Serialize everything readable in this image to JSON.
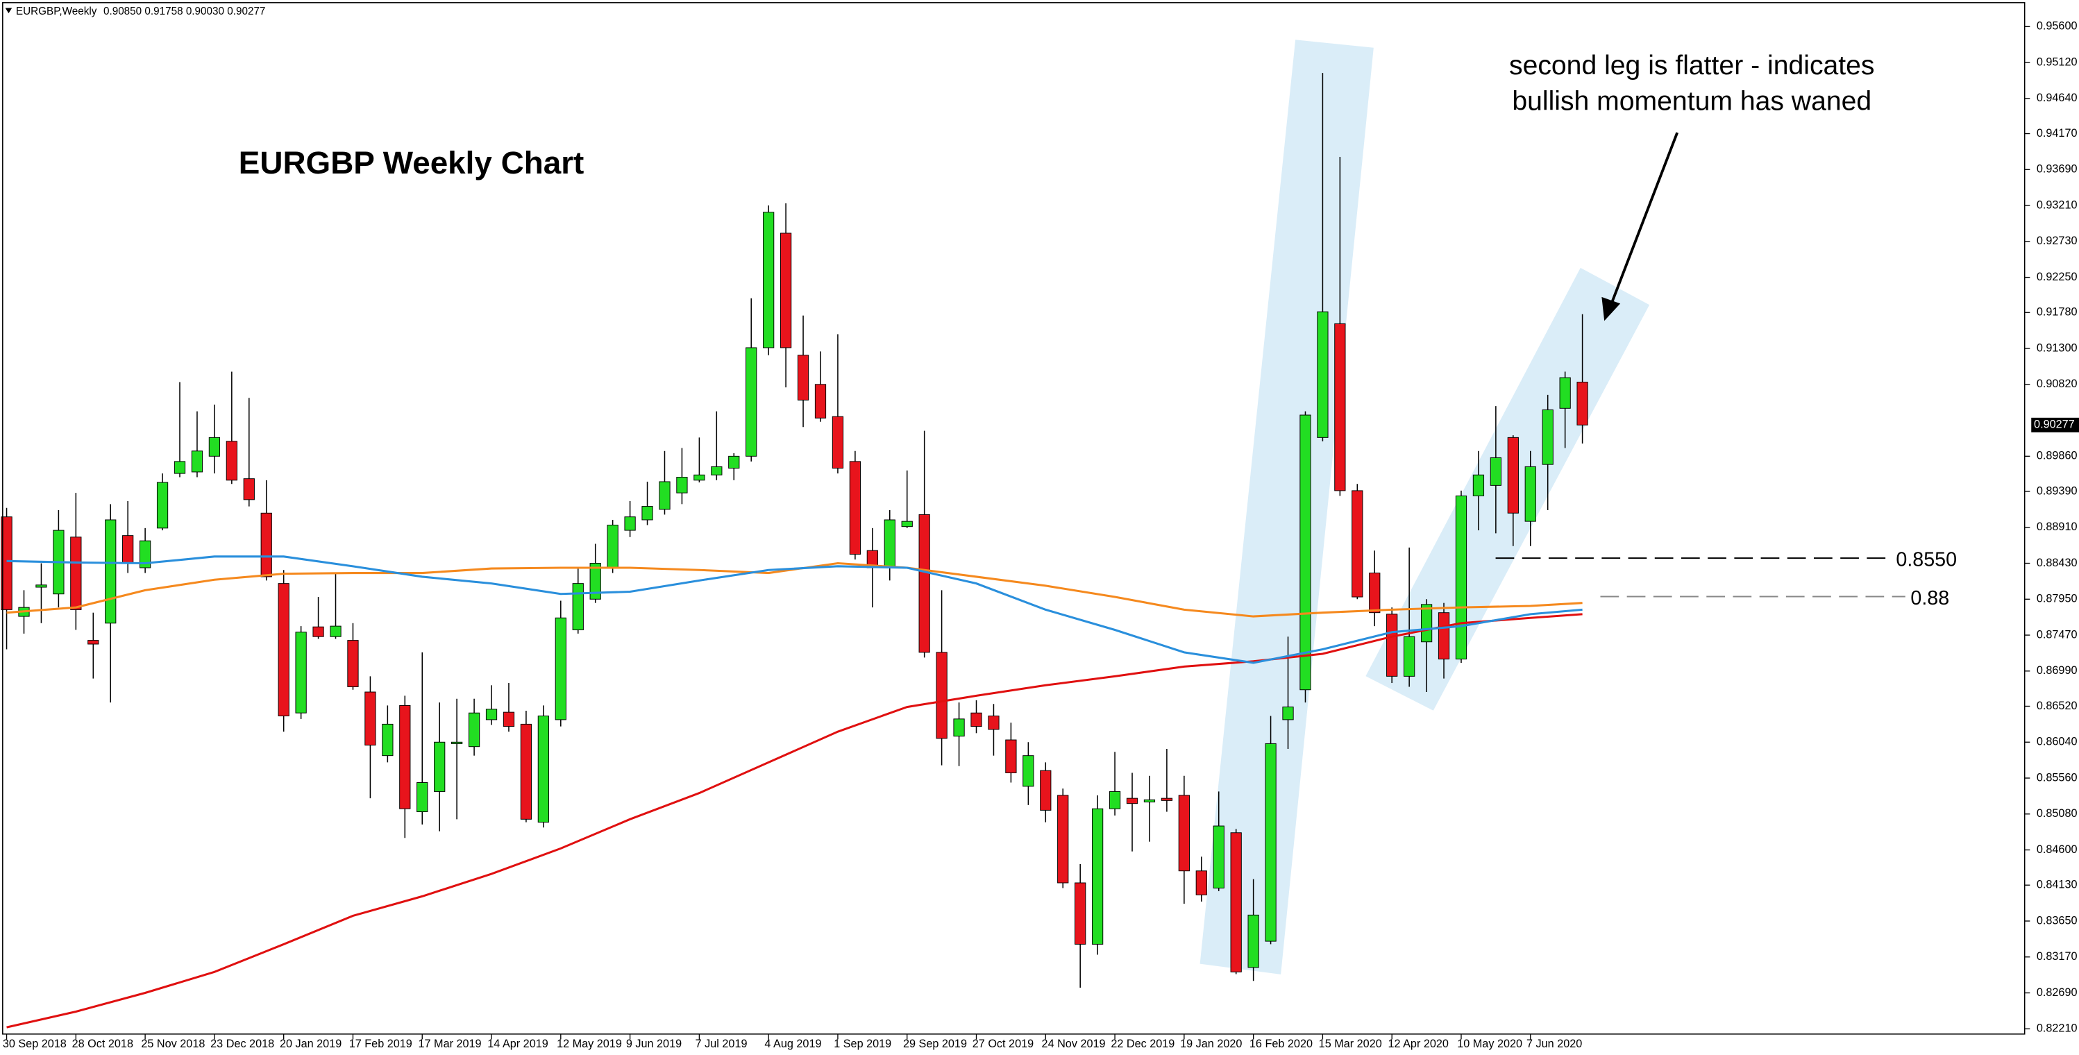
{
  "chart_data": {
    "type": "candlestick",
    "header": {
      "symbol": "EURGBP,Weekly",
      "ohlc": "0.90850 0.91758 0.90030 0.90277"
    },
    "title": "EURGBP Weekly Chart",
    "annotations": [
      "second leg is flatter - indicates",
      "bullish momentum has waned"
    ],
    "level_labels": [
      "0.8550",
      "0.88"
    ],
    "bull_color": "#22de22",
    "bear_color": "#e8141c",
    "categories": [
      "30 Sep 2018",
      null,
      null,
      null,
      "28 Oct 2018",
      null,
      null,
      null,
      "25 Nov 2018",
      null,
      null,
      null,
      "23 Dec 2018",
      null,
      null,
      null,
      "20 Jan 2019",
      null,
      null,
      null,
      "17 Feb 2019",
      null,
      null,
      null,
      "17 Mar 2019",
      null,
      null,
      null,
      "14 Apr 2019",
      null,
      null,
      null,
      "12 May 2019",
      null,
      null,
      null,
      "9 Jun 2019",
      null,
      null,
      null,
      "7 Jul 2019",
      null,
      null,
      null,
      "4 Aug 2019",
      null,
      null,
      null,
      "1 Sep 2019",
      null,
      null,
      null,
      "29 Sep 2019",
      null,
      null,
      null,
      "27 Oct 2019",
      null,
      null,
      null,
      "24 Nov 2019",
      null,
      null,
      null,
      "22 Dec 2019",
      null,
      null,
      null,
      "19 Jan 2020",
      null,
      null,
      null,
      "16 Feb 2020",
      null,
      null,
      null,
      "15 Mar 2020",
      null,
      null,
      null,
      "12 Apr 2020",
      null,
      null,
      null,
      "10 May 2020",
      null,
      null,
      null,
      "7 Jun 2020",
      null,
      null,
      null
    ],
    "open": [
      0.8905,
      0.8772,
      0.8811,
      0.8802,
      0.8878,
      0.874,
      0.8763,
      0.888,
      0.8837,
      0.889,
      0.8963,
      0.8965,
      0.8986,
      0.9006,
      0.8956,
      0.891,
      0.8816,
      0.8643,
      0.8758,
      0.8745,
      0.874,
      0.8671,
      0.8586,
      0.8653,
      0.8511,
      0.8538,
      0.8602,
      0.8598,
      0.8634,
      0.8644,
      0.8628,
      0.8497,
      0.8634,
      0.8754,
      0.8795,
      0.8837,
      0.8887,
      0.8901,
      0.8915,
      0.8937,
      0.8954,
      0.8961,
      0.897,
      0.8986,
      0.9131,
      0.9284,
      0.9121,
      0.9082,
      0.9039,
      0.8979,
      0.886,
      0.8837,
      0.8892,
      0.8908,
      0.8724,
      0.8612,
      0.8643,
      0.8639,
      0.8607,
      0.8545,
      0.8566,
      0.8533,
      0.8416,
      0.8334,
      0.8515,
      0.8529,
      0.8524,
      0.8529,
      0.8533,
      0.8432,
      0.8409,
      0.8483,
      0.8303,
      0.8338,
      0.8634,
      0.8674,
      0.9011,
      0.9163,
      0.894,
      0.883,
      0.8775,
      0.8692,
      0.8738,
      0.8777,
      0.8715,
      0.8933,
      0.8947,
      0.9011,
      0.8899,
      0.8975,
      0.905,
      0.9085
    ],
    "high": [
      0.8917,
      0.8807,
      0.8843,
      0.8914,
      0.8937,
      0.8777,
      0.8922,
      0.8926,
      0.889,
      0.8963,
      0.9085,
      0.9046,
      0.9055,
      0.9099,
      0.9064,
      0.8954,
      0.8834,
      0.8759,
      0.8798,
      0.883,
      0.8763,
      0.8692,
      0.8653,
      0.8666,
      0.8724,
      0.8657,
      0.8662,
      0.8662,
      0.868,
      0.8683,
      0.8646,
      0.8653,
      0.8793,
      0.8837,
      0.8869,
      0.8901,
      0.8926,
      0.8952,
      0.8993,
      0.8997,
      0.9011,
      0.9046,
      0.899,
      0.9197,
      0.9321,
      0.9324,
      0.9174,
      0.9126,
      0.9149,
      0.8993,
      0.889,
      0.8914,
      0.8967,
      0.902,
      0.8807,
      0.8657,
      0.866,
      0.8655,
      0.863,
      0.8604,
      0.8577,
      0.8542,
      0.8441,
      0.8533,
      0.8591,
      0.8563,
      0.8559,
      0.8595,
      0.8559,
      0.8451,
      0.8538,
      0.8488,
      0.8421,
      0.8639,
      0.8745,
      0.9046,
      0.9498,
      0.9386,
      0.8949,
      0.886,
      0.8784,
      0.8864,
      0.8795,
      0.879,
      0.894,
      0.8993,
      0.9053,
      0.9014,
      0.8993,
      0.9068,
      0.9099,
      0.91758
    ],
    "low": [
      0.8728,
      0.8749,
      0.8763,
      0.8784,
      0.8754,
      0.8689,
      0.8657,
      0.883,
      0.883,
      0.8887,
      0.8958,
      0.8958,
      0.8963,
      0.8949,
      0.8919,
      0.882,
      0.8618,
      0.8635,
      0.8742,
      0.8742,
      0.8674,
      0.8529,
      0.8577,
      0.8476,
      0.8494,
      0.8485,
      0.8501,
      0.8586,
      0.8627,
      0.8618,
      0.8497,
      0.849,
      0.8625,
      0.8749,
      0.879,
      0.883,
      0.8878,
      0.8894,
      0.8908,
      0.8922,
      0.8951,
      0.8954,
      0.8954,
      0.8979,
      0.9121,
      0.9078,
      0.9025,
      0.9032,
      0.8963,
      0.8848,
      0.8784,
      0.882,
      0.889,
      0.8717,
      0.8573,
      0.8572,
      0.8616,
      0.8586,
      0.855,
      0.852,
      0.8497,
      0.8409,
      0.8276,
      0.832,
      0.8506,
      0.8458,
      0.8471,
      0.8511,
      0.8388,
      0.8391,
      0.8405,
      0.8294,
      0.8285,
      0.8334,
      0.8595,
      0.8657,
      0.9006,
      0.8933,
      0.8795,
      0.8759,
      0.8683,
      0.8678,
      0.8671,
      0.8689,
      0.871,
      0.8887,
      0.8883,
      0.8866,
      0.8866,
      0.8914,
      0.8997,
      0.9003
    ],
    "close": [
      0.8781,
      0.8784,
      0.8814,
      0.8887,
      0.8781,
      0.8735,
      0.8901,
      0.8843,
      0.8873,
      0.8951,
      0.8979,
      0.8993,
      0.9011,
      0.8954,
      0.8928,
      0.8825,
      0.8639,
      0.8751,
      0.8745,
      0.8759,
      0.8678,
      0.86,
      0.8628,
      0.8515,
      0.855,
      0.8604,
      0.8604,
      0.8643,
      0.8648,
      0.8625,
      0.8501,
      0.8639,
      0.877,
      0.8816,
      0.8843,
      0.8894,
      0.8905,
      0.8919,
      0.8952,
      0.8958,
      0.8961,
      0.8972,
      0.8986,
      0.9131,
      0.9312,
      0.9131,
      0.9061,
      0.9037,
      0.897,
      0.8855,
      0.8837,
      0.8901,
      0.8899,
      0.8724,
      0.8609,
      0.8635,
      0.8625,
      0.8621,
      0.8563,
      0.8586,
      0.8513,
      0.8416,
      0.8334,
      0.8515,
      0.8538,
      0.8522,
      0.8527,
      0.8526,
      0.8432,
      0.84,
      0.8492,
      0.8297,
      0.8373,
      0.8602,
      0.8651,
      0.9041,
      0.9179,
      0.894,
      0.8798,
      0.8777,
      0.8692,
      0.8745,
      0.8788,
      0.8715,
      0.8933,
      0.8961,
      0.8984,
      0.891,
      0.8972,
      0.9048,
      0.9091,
      0.90277
    ],
    "moving_averages": {
      "x": [
        0,
        4,
        8,
        12,
        16,
        20,
        24,
        28,
        32,
        36,
        40,
        44,
        48,
        52,
        56,
        60,
        64,
        68,
        72,
        76,
        80,
        84,
        88,
        91
      ],
      "series": [
        {
          "color": "#e01010",
          "values": [
            0.8223,
            0.8244,
            0.8269,
            0.8297,
            0.8334,
            0.8372,
            0.8398,
            0.8428,
            0.8462,
            0.8501,
            0.8536,
            0.8577,
            0.8618,
            0.8651,
            0.8666,
            0.868,
            0.8692,
            0.8705,
            0.8712,
            0.8722,
            0.8745,
            0.8763,
            0.877,
            0.8775
          ]
        },
        {
          "color": "#f5891e",
          "values": [
            0.8777,
            0.8784,
            0.8807,
            0.8821,
            0.8829,
            0.883,
            0.883,
            0.8836,
            0.8837,
            0.8837,
            0.8834,
            0.883,
            0.8843,
            0.8837,
            0.8825,
            0.8813,
            0.8798,
            0.8781,
            0.8772,
            0.8777,
            0.8781,
            0.8784,
            0.8786,
            0.879
          ]
        },
        {
          "color": "#2a8fdc",
          "values": [
            0.8846,
            0.8844,
            0.8843,
            0.8852,
            0.8852,
            0.8839,
            0.8825,
            0.8816,
            0.8802,
            0.8805,
            0.882,
            0.8834,
            0.8839,
            0.8837,
            0.8816,
            0.8781,
            0.8754,
            0.8724,
            0.871,
            0.8728,
            0.8751,
            0.8759,
            0.8775,
            0.8781
          ]
        }
      ]
    },
    "current_price": 0.90277,
    "ylim": [
      0.8214,
      0.9592
    ],
    "yticks": [
      {
        "value": 0.956,
        "label": "0.95600"
      },
      {
        "value": 0.9512,
        "label": "0.95120"
      },
      {
        "value": 0.9464,
        "label": "0.94640"
      },
      {
        "value": 0.9417,
        "label": "0.94170"
      },
      {
        "value": 0.9369,
        "label": "0.93690"
      },
      {
        "value": 0.9321,
        "label": "0.93210"
      },
      {
        "value": 0.9273,
        "label": "0.92730"
      },
      {
        "value": 0.9225,
        "label": "0.92250"
      },
      {
        "value": 0.9178,
        "label": "0.91780"
      },
      {
        "value": 0.913,
        "label": "0.91300"
      },
      {
        "value": 0.9082,
        "label": "0.90820"
      },
      {
        "value": 0.8986,
        "label": "0.89860"
      },
      {
        "value": 0.8939,
        "label": "0.89390"
      },
      {
        "value": 0.8891,
        "label": "0.88910"
      },
      {
        "value": 0.8843,
        "label": "0.88430"
      },
      {
        "value": 0.8795,
        "label": "0.87950"
      },
      {
        "value": 0.8747,
        "label": "0.87470"
      },
      {
        "value": 0.8699,
        "label": "0.86990"
      },
      {
        "value": 0.8652,
        "label": "0.86520"
      },
      {
        "value": 0.8604,
        "label": "0.86040"
      },
      {
        "value": 0.8556,
        "label": "0.85560"
      },
      {
        "value": 0.8508,
        "label": "0.85080"
      },
      {
        "value": 0.846,
        "label": "0.84600"
      },
      {
        "value": 0.8413,
        "label": "0.84130"
      },
      {
        "value": 0.8365,
        "label": "0.83650"
      },
      {
        "value": 0.8317,
        "label": "0.83170"
      },
      {
        "value": 0.8269,
        "label": "0.82690"
      },
      {
        "value": 0.8221,
        "label": "0.82210"
      }
    ]
  }
}
